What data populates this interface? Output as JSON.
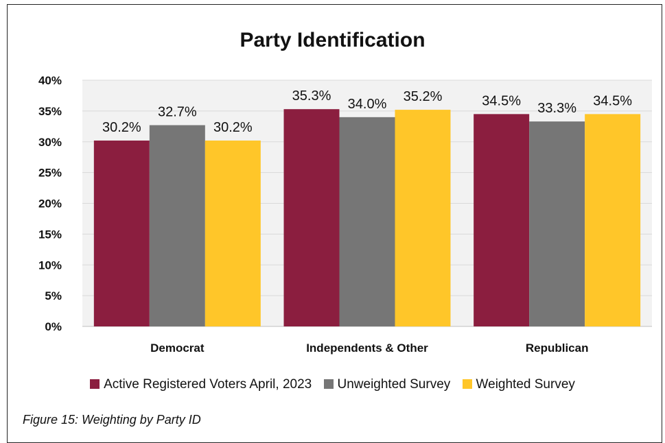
{
  "chart_data": {
    "type": "bar",
    "title": "Party Identification",
    "categories": [
      "Democrat",
      "Independents & Other",
      "Republican"
    ],
    "series": [
      {
        "name": "Active Registered Voters April, 2023",
        "values": [
          30.2,
          35.3,
          34.5
        ],
        "labels": [
          "30.2%",
          "35.3%",
          "34.5%"
        ],
        "color": "#8B1E3F"
      },
      {
        "name": "Unweighted Survey",
        "values": [
          32.7,
          34.0,
          33.3
        ],
        "labels": [
          "32.7%",
          "34.0%",
          "33.3%"
        ],
        "color": "#767676"
      },
      {
        "name": "Weighted Survey",
        "values": [
          30.2,
          35.2,
          34.5
        ],
        "labels": [
          "30.2%",
          "35.2%",
          "34.5%"
        ],
        "color": "#FFC629"
      }
    ],
    "yticks": [
      "0%",
      "5%",
      "10%",
      "15%",
      "20%",
      "25%",
      "30%",
      "35%",
      "40%"
    ],
    "ylim": [
      0,
      40
    ],
    "ytick_step": 5,
    "grid": true,
    "legend_position": "bottom",
    "plot_background": "#F2F2F2"
  },
  "caption": "Figure 15: Weighting by Party ID"
}
